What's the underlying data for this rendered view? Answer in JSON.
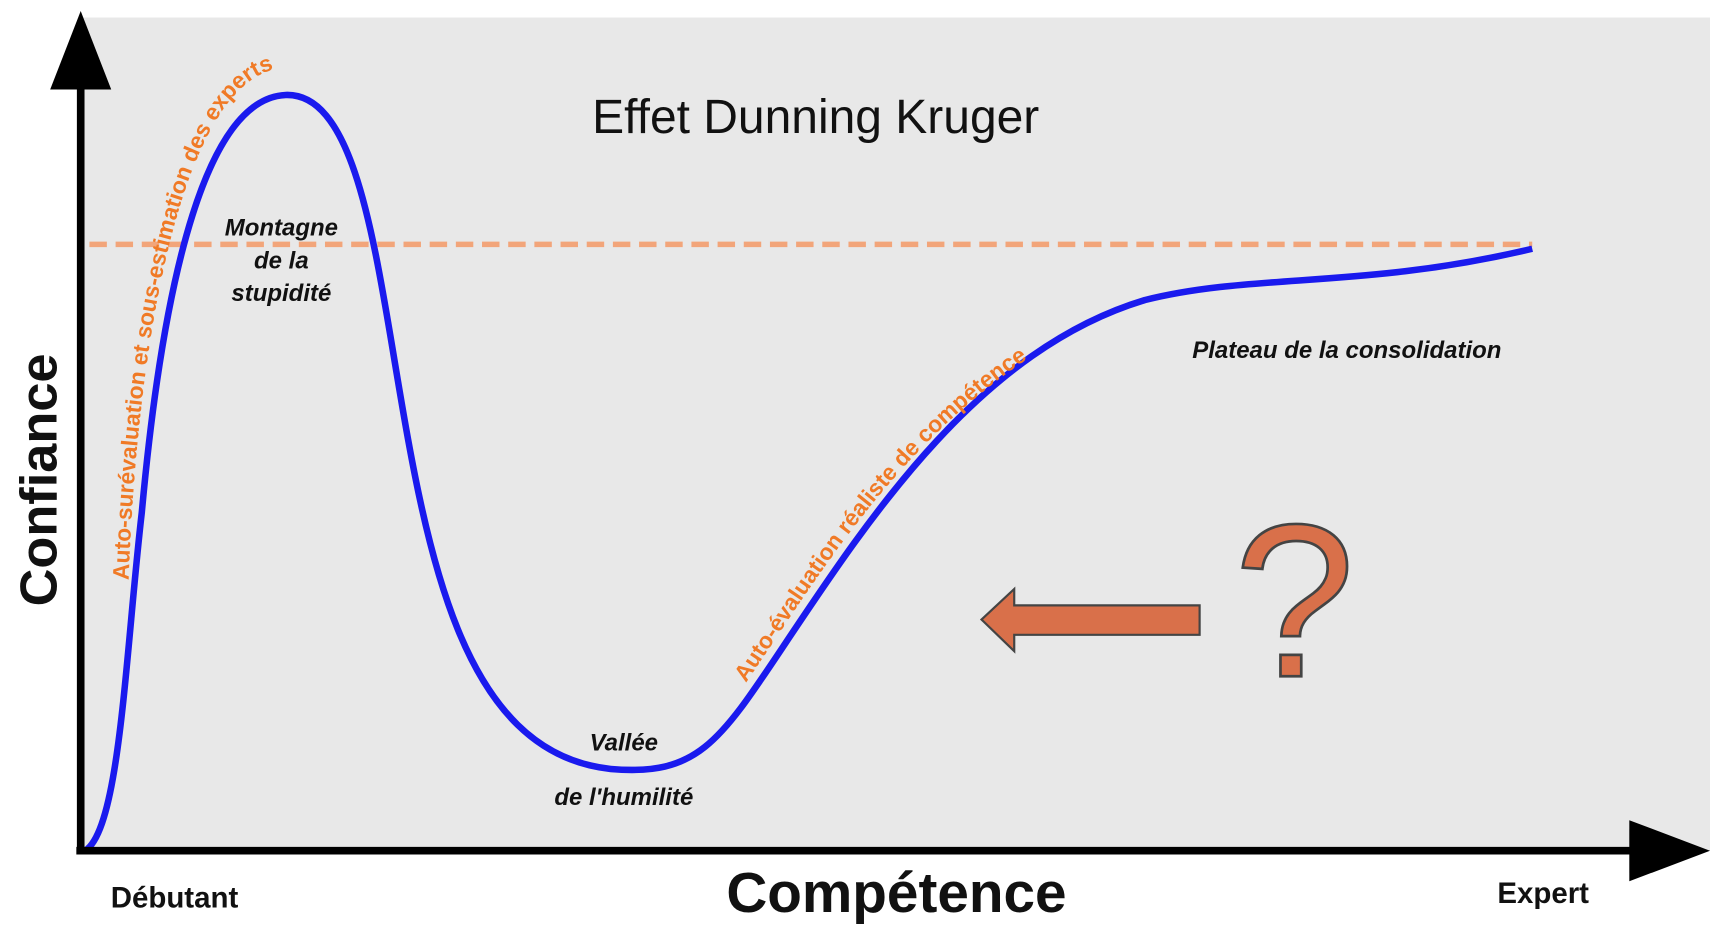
{
  "title": "Effet Dunning Kruger",
  "axes": {
    "y_label": "Confiance",
    "x_label": "Compétence",
    "x_start": "Débutant",
    "x_end": "Expert"
  },
  "stages": {
    "peak": [
      "Montagne",
      "de la",
      "stupidité"
    ],
    "valley": [
      "Vallée",
      "de l'humilité"
    ],
    "plateau": "Plateau de la consolidation"
  },
  "curve_labels": {
    "rise": "Auto-surévaluation et sous-estimation des experts",
    "climb": "Auto-évaluation réaliste de compétence"
  },
  "question": "?"
}
